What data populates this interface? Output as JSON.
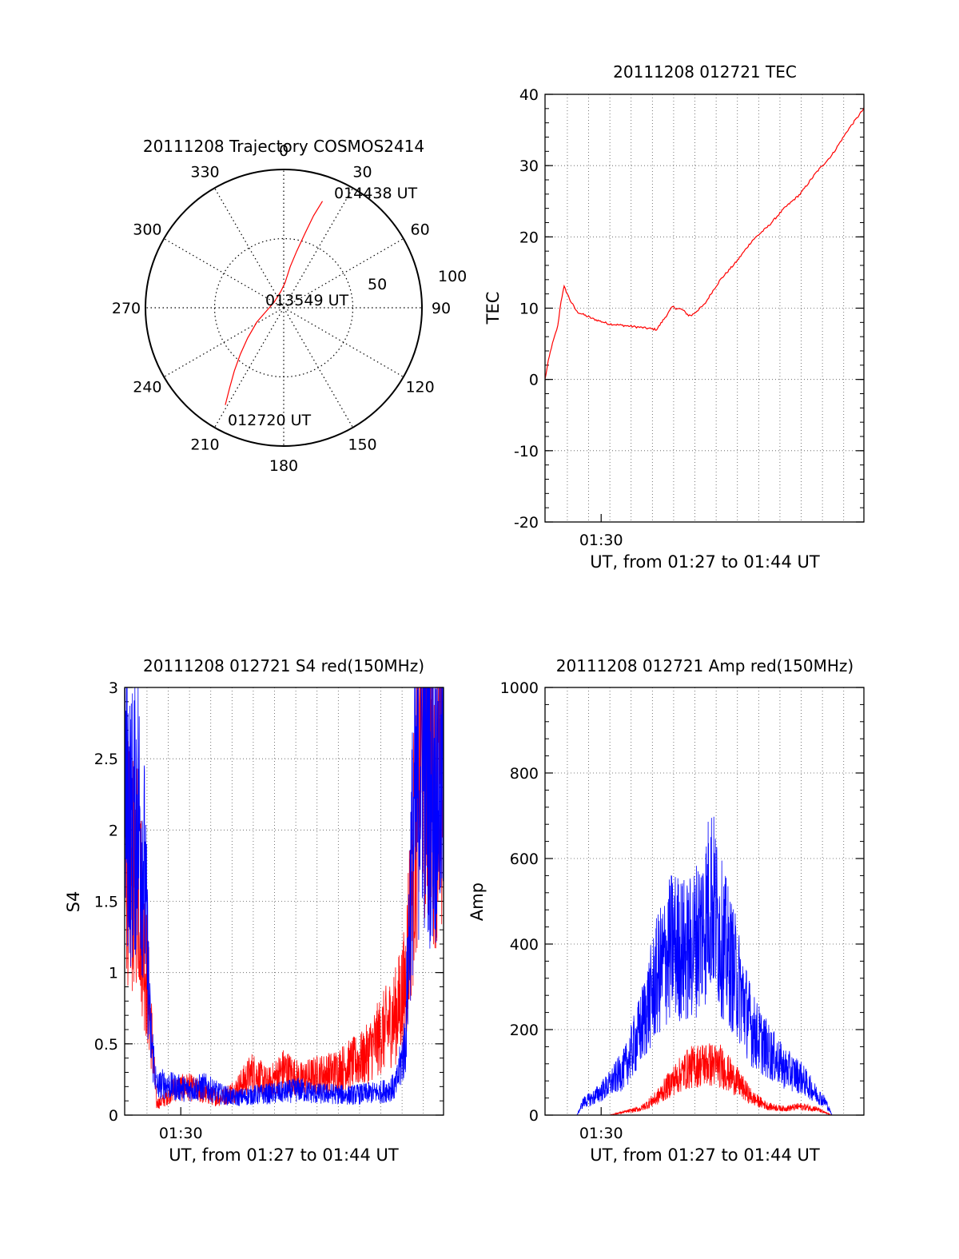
{
  "colors": {
    "red": "#ff0000",
    "blue": "#0000ff",
    "grid": "#555555",
    "axis": "#000000"
  },
  "chart_data": [
    {
      "type": "polar",
      "title": "20111208 Trajectory COSMOS2414",
      "angle_labels": [
        "0",
        "30",
        "60",
        "90",
        "120",
        "150",
        "180",
        "210",
        "240",
        "270",
        "300",
        "330"
      ],
      "angles_deg": [
        0,
        30,
        60,
        90,
        120,
        150,
        180,
        210,
        240,
        270,
        300,
        330
      ],
      "radius_labels": [
        "50",
        "100"
      ],
      "radii": [
        50,
        100
      ],
      "series": [
        {
          "color": "red",
          "points": [
            [
              211,
              82
            ],
            [
              214,
              70
            ],
            [
              218,
              58
            ],
            [
              223,
              46
            ],
            [
              230,
              34
            ],
            [
              242,
              22
            ],
            [
              262,
              12
            ],
            [
              300,
              8
            ],
            [
              350,
              12
            ],
            [
              3,
              18
            ],
            [
              9,
              30
            ],
            [
              13,
              42
            ],
            [
              16,
              56
            ],
            [
              18,
              70
            ],
            [
              20,
              82
            ]
          ]
        }
      ],
      "annotations": [
        {
          "text": "012720 UT",
          "at": [
            211,
            82
          ]
        },
        {
          "text": "013549 UT",
          "at": [
            100,
            6
          ]
        },
        {
          "text": "014438 UT",
          "at": [
            20,
            82
          ]
        }
      ]
    },
    {
      "type": "line",
      "title": "20111208 012721 TEC",
      "xlabel": "UT, from 01:27 to 01:44 UT",
      "ylabel": "TEC",
      "xlim": [
        0.0,
        1.0
      ],
      "ylim": [
        -20,
        40
      ],
      "yticks": [
        "-20",
        "-10",
        "0",
        "10",
        "20",
        "30",
        "40"
      ],
      "xtick_label": "01:30",
      "xtick_pos": 0.176,
      "series": [
        {
          "color": "red",
          "x": [
            0.0,
            0.01,
            0.02,
            0.03,
            0.04,
            0.05,
            0.06,
            0.07,
            0.08,
            0.1,
            0.15,
            0.2,
            0.3,
            0.35,
            0.4,
            0.41,
            0.43,
            0.45,
            0.46,
            0.5,
            0.52,
            0.55,
            0.6,
            0.65,
            0.7,
            0.75,
            0.8,
            0.85,
            0.9,
            0.95,
            1.0
          ],
          "y": [
            0,
            2.5,
            4.5,
            6,
            7.5,
            11,
            13,
            12,
            11,
            9.5,
            8.5,
            7.8,
            7.3,
            7.0,
            10.2,
            10.0,
            9.8,
            9.0,
            9.0,
            10.5,
            12,
            14,
            16.5,
            19.5,
            21.5,
            24,
            26,
            29,
            31.5,
            35,
            38
          ]
        }
      ]
    },
    {
      "type": "line",
      "title": "20111208 012721 S4 red(150MHz)",
      "xlabel": "UT, from 01:27 to 01:44 UT",
      "ylabel": "S4",
      "xlim": [
        0.0,
        1.0
      ],
      "ylim": [
        0,
        3
      ],
      "yticks": [
        "0",
        "0.5",
        "1",
        "1.5",
        "2",
        "2.5",
        "3"
      ],
      "xtick_label": "01:30",
      "xtick_pos": 0.176,
      "series": [
        {
          "color": "red",
          "x": [
            0.0,
            0.02,
            0.04,
            0.06,
            0.08,
            0.1,
            0.12,
            0.15,
            0.2,
            0.25,
            0.3,
            0.35,
            0.4,
            0.45,
            0.5,
            0.55,
            0.6,
            0.65,
            0.7,
            0.75,
            0.8,
            0.85,
            0.88,
            0.9,
            0.93,
            0.96,
            1.0
          ],
          "y": [
            2.0,
            1.6,
            1.8,
            1.2,
            0.7,
            0.08,
            0.1,
            0.18,
            0.2,
            0.15,
            0.12,
            0.18,
            0.3,
            0.22,
            0.32,
            0.25,
            0.28,
            0.3,
            0.35,
            0.4,
            0.55,
            0.7,
            0.9,
            1.6,
            2.8,
            2.4,
            2.2
          ]
        },
        {
          "color": "blue",
          "x": [
            0.0,
            0.02,
            0.04,
            0.06,
            0.08,
            0.1,
            0.12,
            0.15,
            0.2,
            0.25,
            0.3,
            0.35,
            0.4,
            0.45,
            0.5,
            0.55,
            0.6,
            0.65,
            0.7,
            0.75,
            0.8,
            0.85,
            0.88,
            0.9,
            0.93,
            0.96,
            1.0
          ],
          "y": [
            2.4,
            2.0,
            2.2,
            1.8,
            0.6,
            0.2,
            0.22,
            0.2,
            0.18,
            0.2,
            0.15,
            0.12,
            0.14,
            0.15,
            0.16,
            0.18,
            0.15,
            0.15,
            0.14,
            0.15,
            0.16,
            0.2,
            0.5,
            1.8,
            2.6,
            2.3,
            2.4
          ]
        }
      ]
    },
    {
      "type": "line",
      "title": "20111208 012721 Amp red(150MHz)",
      "xlabel": "UT, from 01:27 to 01:44 UT",
      "ylabel": "Amp",
      "xlim": [
        0.0,
        1.0
      ],
      "ylim": [
        0,
        1000
      ],
      "yticks": [
        "0",
        "200",
        "400",
        "600",
        "800",
        "1000"
      ],
      "xtick_label": "01:30",
      "xtick_pos": 0.176,
      "series": [
        {
          "color": "blue",
          "x": [
            0.0,
            0.05,
            0.1,
            0.12,
            0.15,
            0.2,
            0.25,
            0.3,
            0.35,
            0.4,
            0.45,
            0.5,
            0.52,
            0.55,
            0.6,
            0.65,
            0.7,
            0.75,
            0.8,
            0.85,
            0.88,
            0.9,
            0.95,
            1.0
          ],
          "y": [
            0,
            0,
            0,
            30,
            40,
            70,
            110,
            200,
            320,
            400,
            380,
            450,
            520,
            420,
            320,
            200,
            150,
            110,
            90,
            50,
            30,
            0,
            0,
            0
          ]
        },
        {
          "color": "red",
          "x": [
            0.0,
            0.2,
            0.3,
            0.35,
            0.4,
            0.45,
            0.5,
            0.55,
            0.6,
            0.65,
            0.7,
            0.75,
            0.8,
            0.85,
            0.88,
            0.9,
            1.0
          ],
          "y": [
            0,
            0,
            15,
            40,
            80,
            110,
            120,
            115,
            80,
            40,
            20,
            15,
            20,
            15,
            5,
            0,
            0
          ]
        }
      ]
    }
  ]
}
